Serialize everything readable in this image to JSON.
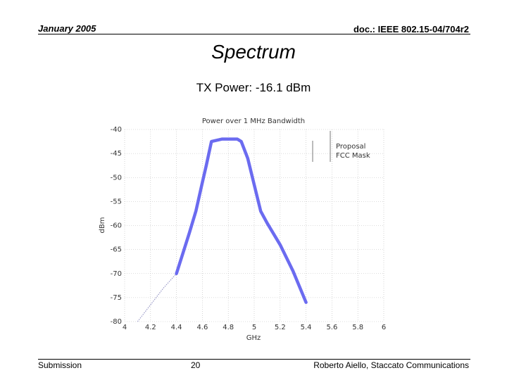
{
  "header": {
    "date": "January 2005",
    "doc": "doc.: IEEE 802.15-04/704r2"
  },
  "slide": {
    "title": "Spectrum",
    "subtitle": "TX Power: -16.1 dBm"
  },
  "footer": {
    "left": "Submission",
    "page": "20",
    "author": "Roberto Aiello, Staccato Communications"
  },
  "chart_data": {
    "type": "line",
    "title": "Power over 1 MHz Bandwidth",
    "xlabel": "GHz",
    "ylabel": "dBm",
    "xlim": [
      4,
      6
    ],
    "ylim": [
      -80,
      -40
    ],
    "xticks": [
      4,
      4.2,
      4.4,
      4.6,
      4.8,
      5,
      5.2,
      5.4,
      5.6,
      5.8,
      6
    ],
    "xtick_labels": [
      "4",
      "4.2",
      "4.4",
      "4.6",
      "4.8",
      "5",
      "5.2",
      "5.4",
      "5.6",
      "5.8",
      "6"
    ],
    "yticks": [
      -40,
      -45,
      -50,
      -55,
      -60,
      -65,
      -70,
      -75,
      -80
    ],
    "ytick_labels": [
      "-40",
      "-45",
      "-50",
      "-55",
      "-60",
      "-65",
      "-70",
      "-75",
      "-80"
    ],
    "grid": true,
    "legend": {
      "entries": [
        "Proposal",
        "FCC Mask"
      ],
      "placement": "top-right"
    },
    "series": [
      {
        "name": "Proposal",
        "color": "#6b6bf0",
        "x": [
          4.1,
          4.2,
          4.3,
          4.4,
          4.5,
          4.55,
          4.6,
          4.63,
          4.67,
          4.75,
          4.82,
          4.87,
          4.9,
          4.95,
          5.0,
          5.05,
          5.1,
          5.2,
          5.3,
          5.4
        ],
        "y": [
          -80,
          -76.5,
          -73,
          -70,
          -61.5,
          -57,
          -51,
          -47.5,
          -42.5,
          -42,
          -42,
          -42,
          -42.5,
          -46,
          -51.5,
          -57,
          -59.5,
          -64,
          -69.5,
          -76
        ]
      }
    ]
  }
}
